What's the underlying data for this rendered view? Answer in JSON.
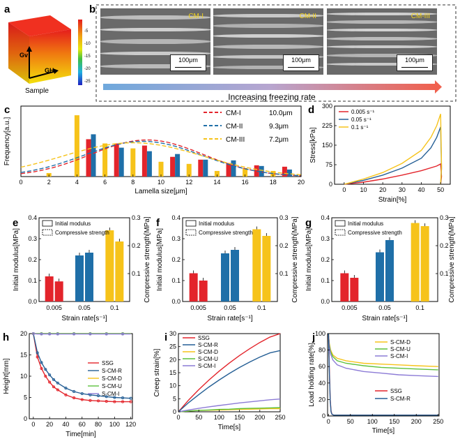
{
  "panels": {
    "a": "a",
    "b": "b",
    "c": "c",
    "d": "d",
    "e": "e",
    "f": "f",
    "g": "g",
    "h": "h",
    "i": "i",
    "j": "j"
  },
  "panel_a": {
    "axis_v": "Gv",
    "axis_h": "GH",
    "caption": "Sample",
    "colorbar_ticks": [
      "-5",
      "-10",
      "-15",
      "-20",
      "-25"
    ],
    "colors": {
      "top": "#e51c1c",
      "bottom": "#2020c0"
    }
  },
  "panel_b": {
    "images": [
      {
        "label": "CM-I",
        "scale": "100μm"
      },
      {
        "label": "CM-II",
        "scale": "100μm"
      },
      {
        "label": "CM-III",
        "scale": "100μm"
      }
    ],
    "arrow_label": "Increasing freezing rate"
  },
  "colors": {
    "red": "#e3242b",
    "blue": "#1f6fa8",
    "yellow": "#f6c31a",
    "green": "#5cc13d",
    "purple": "#8c7bd6",
    "darkblue": "#255f95"
  },
  "chart_data": [
    {
      "id": "c",
      "type": "bar",
      "xlabel": "Lamella size[μm]",
      "ylabel": "Frequency[a.u.]",
      "xlim": [
        0,
        20
      ],
      "xticks": [
        "0",
        "2",
        "4",
        "6",
        "8",
        "10",
        "12",
        "14",
        "16",
        "18",
        "20"
      ],
      "series": [
        {
          "name": "CM-I",
          "value": "10.0μm",
          "x": [
            5,
            7,
            9,
            11,
            13,
            15,
            17,
            19
          ],
          "values": [
            0.53,
            0.47,
            0.44,
            0.28,
            0.24,
            0.19,
            0.16,
            0.14
          ],
          "fit_mean": 9.0,
          "fit_sd": 4.0,
          "fit_peak": 0.52
        },
        {
          "name": "CM-II",
          "value": "9.3μm",
          "x": [
            5,
            7,
            9,
            11,
            13,
            15,
            17,
            19
          ],
          "values": [
            0.6,
            0.41,
            0.36,
            0.32,
            0.24,
            0.23,
            0.15,
            0.1
          ],
          "fit_mean": 8.7,
          "fit_sd": 4.2,
          "fit_peak": 0.5
        },
        {
          "name": "CM-III",
          "value": "7.2μm",
          "x": [
            2,
            4,
            6,
            8,
            10,
            12,
            14,
            16,
            18
          ],
          "values": [
            0.05,
            0.87,
            0.47,
            0.4,
            0.21,
            0.18,
            0.08,
            0.12,
            0.08
          ],
          "fit_mean": 8.0,
          "fit_sd": 5.0,
          "fit_peak": 0.48
        }
      ]
    },
    {
      "id": "d",
      "type": "line",
      "xlabel": "Strain[%]",
      "ylabel": "Stress[kPa]",
      "xlim": [
        -5,
        55
      ],
      "ylim": [
        0,
        300
      ],
      "xticks": [
        "0",
        "10",
        "20",
        "30",
        "40",
        "50"
      ],
      "yticks": [
        "0",
        "75",
        "150",
        "225",
        "300"
      ],
      "series": [
        {
          "name": "0.005 s⁻¹",
          "x": [
            0,
            10,
            20,
            30,
            40,
            48,
            50,
            50.5,
            50
          ],
          "values": [
            0,
            8,
            20,
            35,
            52,
            70,
            78,
            30,
            0
          ]
        },
        {
          "name": "0.05 s⁻¹",
          "x": [
            0,
            10,
            20,
            30,
            40,
            45,
            48,
            50,
            50.5,
            50
          ],
          "values": [
            0,
            15,
            35,
            62,
            100,
            140,
            180,
            220,
            60,
            0
          ]
        },
        {
          "name": "0.1 s⁻¹",
          "x": [
            0,
            10,
            20,
            30,
            40,
            45,
            48,
            50,
            50.5,
            50
          ],
          "values": [
            0,
            20,
            45,
            80,
            130,
            180,
            225,
            270,
            70,
            0
          ]
        }
      ]
    },
    {
      "id": "e",
      "type": "bar",
      "xlabel": "Strain rate[s⁻¹]",
      "ylabel": "Initial modulus[MPa]",
      "ylabel2": "Compressive strength[MPa]",
      "categories": [
        "0.005",
        "0.05",
        "0.1"
      ],
      "ylim": [
        0,
        0.4
      ],
      "ylim2": [
        0,
        0.3
      ],
      "yticks": [
        "0.0",
        "0.1",
        "0.2",
        "0.3",
        "0.4"
      ],
      "yticks2": [
        "0.1",
        "0.2",
        "0.3"
      ],
      "legend": [
        "Initial modulus",
        "Compressive strength"
      ],
      "modulus": [
        0.12,
        0.22,
        0.34
      ],
      "strength": [
        0.072,
        0.175,
        0.215
      ]
    },
    {
      "id": "f",
      "type": "bar",
      "xlabel": "Strain rate[s⁻¹]",
      "ylabel": "Initial modulus[MPa]",
      "ylabel2": "Compressive strength[MPa]",
      "categories": [
        "0.005",
        "0.05",
        "0.1"
      ],
      "ylim": [
        0,
        0.4
      ],
      "ylim2": [
        0,
        0.3
      ],
      "yticks": [
        "0.0",
        "0.1",
        "0.2",
        "0.3",
        "0.4"
      ],
      "yticks2": [
        "0.1",
        "0.2",
        "0.3"
      ],
      "legend": [
        "Initial modulus",
        "Compressive strength"
      ],
      "modulus": [
        0.135,
        0.23,
        0.345
      ],
      "strength": [
        0.075,
        0.185,
        0.235
      ]
    },
    {
      "id": "g",
      "type": "bar",
      "xlabel": "Strain rate[s⁻¹]",
      "ylabel": "Initial modulus[MPa]",
      "ylabel2": "Compressive strength[MPa]",
      "categories": [
        "0.005",
        "0.05",
        "0.1"
      ],
      "ylim": [
        0,
        0.4
      ],
      "ylim2": [
        0,
        0.3
      ],
      "yticks": [
        "0.0",
        "0.1",
        "0.2",
        "0.3",
        "0.4"
      ],
      "yticks2": [
        "0.1",
        "0.2",
        "0.3"
      ],
      "legend": [
        "Initial modulus",
        "Compressive strength"
      ],
      "modulus": [
        0.135,
        0.235,
        0.375
      ],
      "strength": [
        0.085,
        0.22,
        0.27
      ]
    },
    {
      "id": "h",
      "type": "line",
      "xlabel": "Time[min]",
      "ylabel": "Height[mm]",
      "xlim": [
        -5,
        122
      ],
      "ylim": [
        0,
        20
      ],
      "xticks": [
        "0",
        "20",
        "40",
        "60",
        "80",
        "100",
        "120"
      ],
      "yticks": [
        "0",
        "5",
        "10",
        "15",
        "20"
      ],
      "x": [
        0,
        5,
        10,
        15,
        20,
        25,
        30,
        40,
        50,
        60,
        70,
        80,
        90,
        100,
        110,
        120
      ],
      "series": [
        {
          "name": "SSG",
          "values": [
            20,
            14.5,
            11.8,
            10.0,
            8.6,
            7.5,
            6.8,
            5.6,
            4.9,
            4.5,
            4.3,
            4.2,
            4.1,
            4.0,
            4.0,
            4.0
          ]
        },
        {
          "name": "S-CM-R",
          "values": [
            20,
            15.5,
            13.2,
            11.6,
            10.3,
            9.2,
            8.4,
            7.2,
            6.4,
            5.9,
            5.6,
            5.4,
            5.2,
            5.0,
            4.9,
            4.8
          ]
        },
        {
          "name": "S-CM-D",
          "values": [
            20,
            20,
            20,
            20,
            20,
            20,
            20,
            20,
            20,
            20,
            20,
            20,
            20,
            20,
            20,
            20
          ]
        },
        {
          "name": "S-CM-U",
          "values": [
            20,
            20,
            20,
            20,
            20,
            20,
            20,
            20,
            20,
            20,
            20,
            20,
            20,
            20,
            20,
            20
          ]
        },
        {
          "name": "S-CM-I",
          "values": [
            20,
            19.9,
            19.9,
            19.9,
            19.9,
            19.9,
            19.9,
            19.9,
            19.9,
            19.9,
            19.9,
            19.9,
            19.9,
            19.9,
            19.9,
            19.9
          ]
        }
      ]
    },
    {
      "id": "i",
      "type": "line",
      "xlabel": "Time[s]",
      "ylabel": "Creep strain[%]",
      "xlim": [
        0,
        250
      ],
      "ylim": [
        0,
        30
      ],
      "xticks": [
        "0",
        "50",
        "100",
        "150",
        "200",
        "250"
      ],
      "yticks": [
        "0",
        "5",
        "10",
        "15",
        "20",
        "25",
        "30"
      ],
      "x": [
        0,
        25,
        50,
        75,
        100,
        125,
        150,
        175,
        200,
        225,
        250
      ],
      "series": [
        {
          "name": "SSG",
          "values": [
            0,
            4.5,
            8.5,
            12.2,
            15.6,
            18.7,
            21.6,
            24.2,
            26.6,
            28.7,
            30
          ]
        },
        {
          "name": "S-CM-R",
          "values": [
            0,
            3.5,
            6.6,
            9.5,
            12.2,
            14.7,
            17.0,
            19.1,
            21.0,
            22.6,
            23.5
          ]
        },
        {
          "name": "S-CM-D",
          "values": [
            0,
            0.3,
            0.5,
            0.6,
            0.7,
            0.8,
            0.9,
            1.0,
            1.1,
            1.2,
            1.2
          ]
        },
        {
          "name": "S-CM-U",
          "values": [
            0,
            0.3,
            0.5,
            0.7,
            0.9,
            1.0,
            1.2,
            1.3,
            1.4,
            1.5,
            1.6
          ]
        },
        {
          "name": "S-CM-I",
          "values": [
            0,
            0.7,
            1.3,
            1.9,
            2.4,
            2.9,
            3.4,
            3.8,
            4.2,
            4.6,
            4.9
          ]
        }
      ]
    },
    {
      "id": "j",
      "type": "line",
      "xlabel": "Time[s]",
      "ylabel": "Load holding rate[%]",
      "xlim": [
        -2,
        252
      ],
      "ylim": [
        0,
        100
      ],
      "xticks": [
        "0",
        "50",
        "100",
        "150",
        "200",
        "250"
      ],
      "yticks": [
        "0",
        "20",
        "40",
        "60",
        "80",
        "100"
      ],
      "series": [
        {
          "name": "S-CM-D",
          "x": [
            0,
            2,
            5,
            10,
            20,
            40,
            80,
            120,
            160,
            200,
            250
          ],
          "values": [
            100,
            88,
            80,
            74,
            70,
            67,
            64,
            63,
            62,
            61,
            60
          ]
        },
        {
          "name": "S-CM-U",
          "x": [
            0,
            2,
            5,
            10,
            20,
            40,
            80,
            120,
            160,
            200,
            250
          ],
          "values": [
            100,
            86,
            78,
            72,
            67,
            64,
            61,
            59,
            58,
            57,
            56
          ]
        },
        {
          "name": "S-CM-I",
          "x": [
            0,
            2,
            5,
            10,
            20,
            40,
            80,
            120,
            160,
            200,
            250
          ],
          "values": [
            100,
            84,
            75,
            68,
            62,
            58,
            54,
            52,
            50,
            49,
            48
          ]
        },
        {
          "name": "SSG",
          "x": [
            0,
            2,
            4,
            6,
            8,
            12,
            250
          ],
          "values": [
            100,
            60,
            20,
            6,
            2,
            1,
            1
          ]
        },
        {
          "name": "S-CM-R",
          "x": [
            0,
            2,
            4,
            6,
            8,
            12,
            250
          ],
          "values": [
            100,
            55,
            18,
            5,
            2,
            1,
            1
          ]
        }
      ]
    }
  ]
}
